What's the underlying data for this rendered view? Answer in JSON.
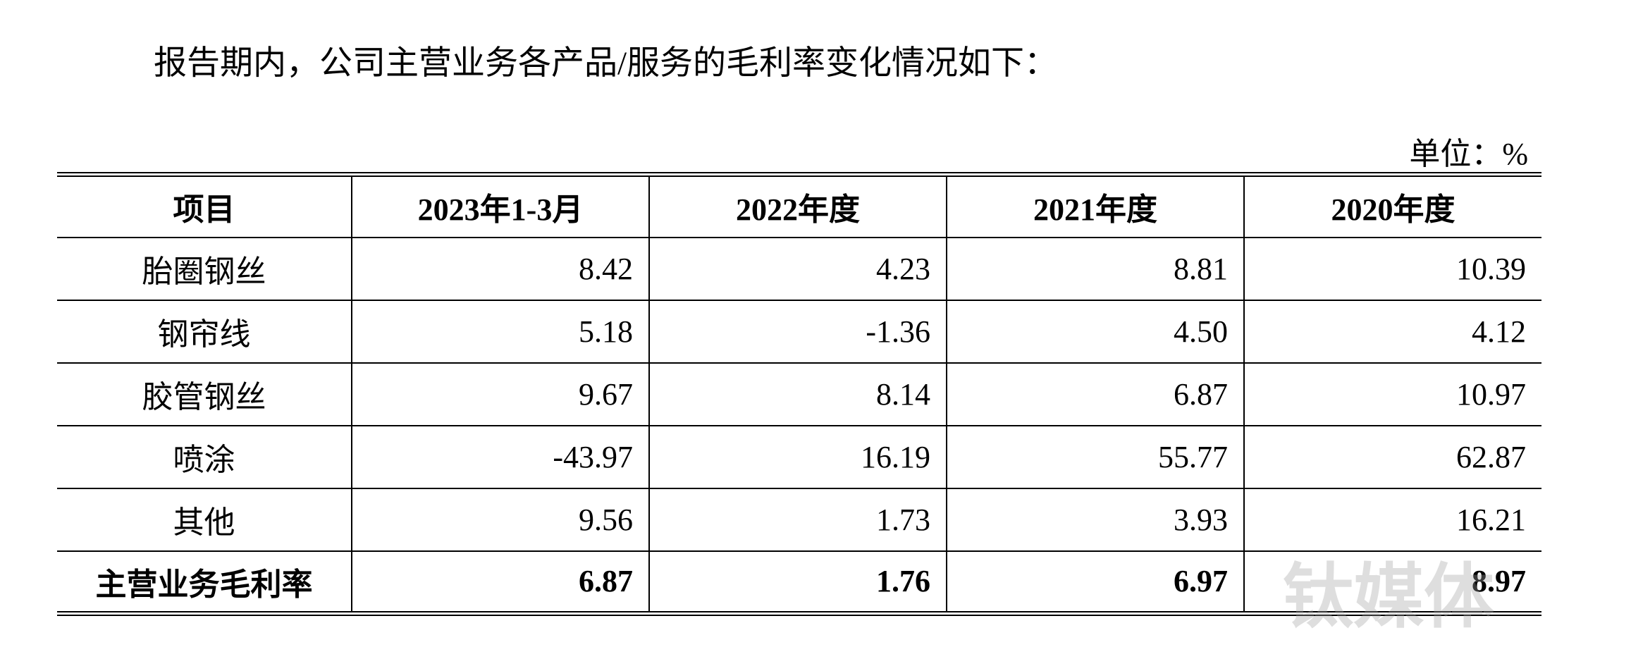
{
  "intro": "报告期内，公司主营业务各产品/服务的毛利率变化情况如下：",
  "unit": "单位：%",
  "table": {
    "header": [
      "项目",
      "2023年1-3月",
      "2022年度",
      "2021年度",
      "2020年度"
    ],
    "rows": [
      [
        "胎圈钢丝",
        "8.42",
        "4.23",
        "8.81",
        "10.39"
      ],
      [
        "钢帘线",
        "5.18",
        "-1.36",
        "4.50",
        "4.12"
      ],
      [
        "胶管钢丝",
        "9.67",
        "8.14",
        "6.87",
        "10.97"
      ],
      [
        "喷涂",
        "-43.97",
        "16.19",
        "55.77",
        "62.87"
      ],
      [
        "其他",
        "9.56",
        "1.73",
        "3.93",
        "16.21"
      ],
      [
        "主营业务毛利率",
        "6.87",
        "1.76",
        "6.97",
        "8.97"
      ]
    ]
  },
  "watermark": "钛媒体"
}
